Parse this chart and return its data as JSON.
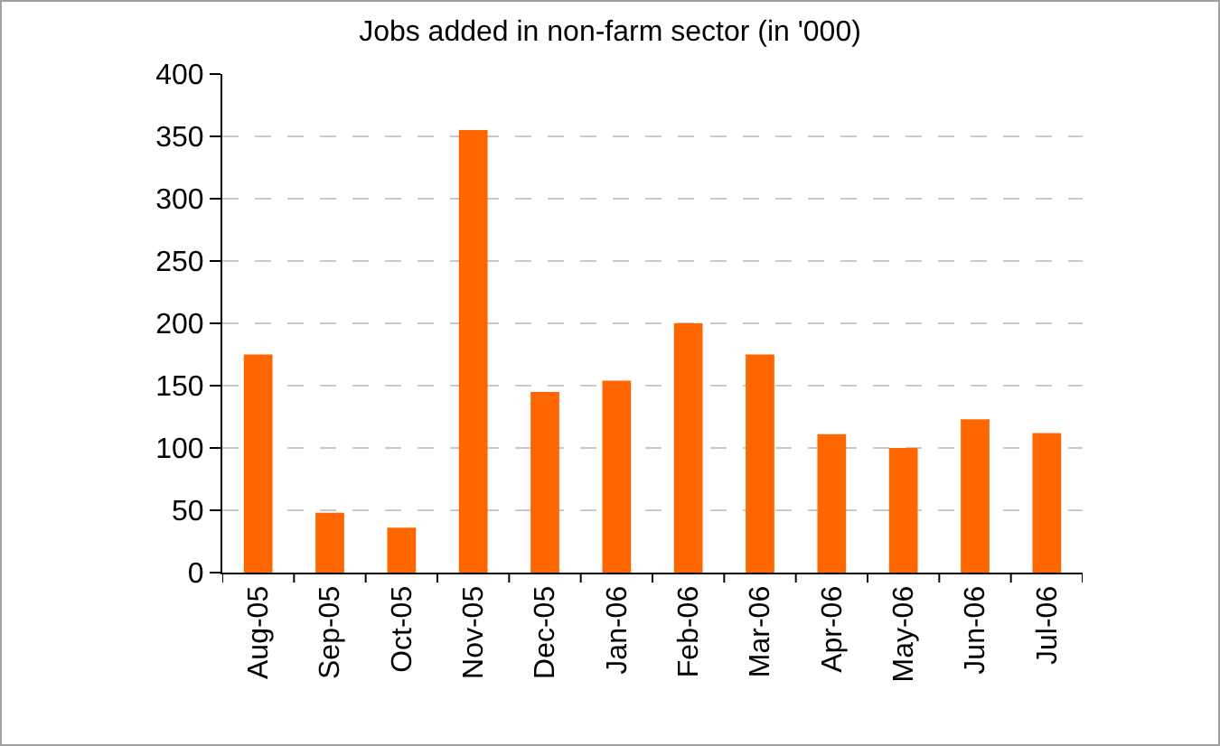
{
  "chart_data": {
    "type": "bar",
    "title": "Jobs added in non-farm sector (in '000)",
    "categories": [
      "Aug-05",
      "Sep-05",
      "Oct-05",
      "Nov-05",
      "Dec-05",
      "Jan-06",
      "Feb-06",
      "Mar-06",
      "Apr-06",
      "May-06",
      "Jun-06",
      "Jul-06"
    ],
    "values": [
      175,
      48,
      36,
      355,
      145,
      154,
      200,
      175,
      111,
      100,
      123,
      112
    ],
    "color": "#ff6600",
    "ylim": [
      0,
      400
    ],
    "yticks": [
      0,
      50,
      100,
      150,
      200,
      250,
      300,
      350,
      400
    ],
    "grid": "y",
    "legend": false
  }
}
